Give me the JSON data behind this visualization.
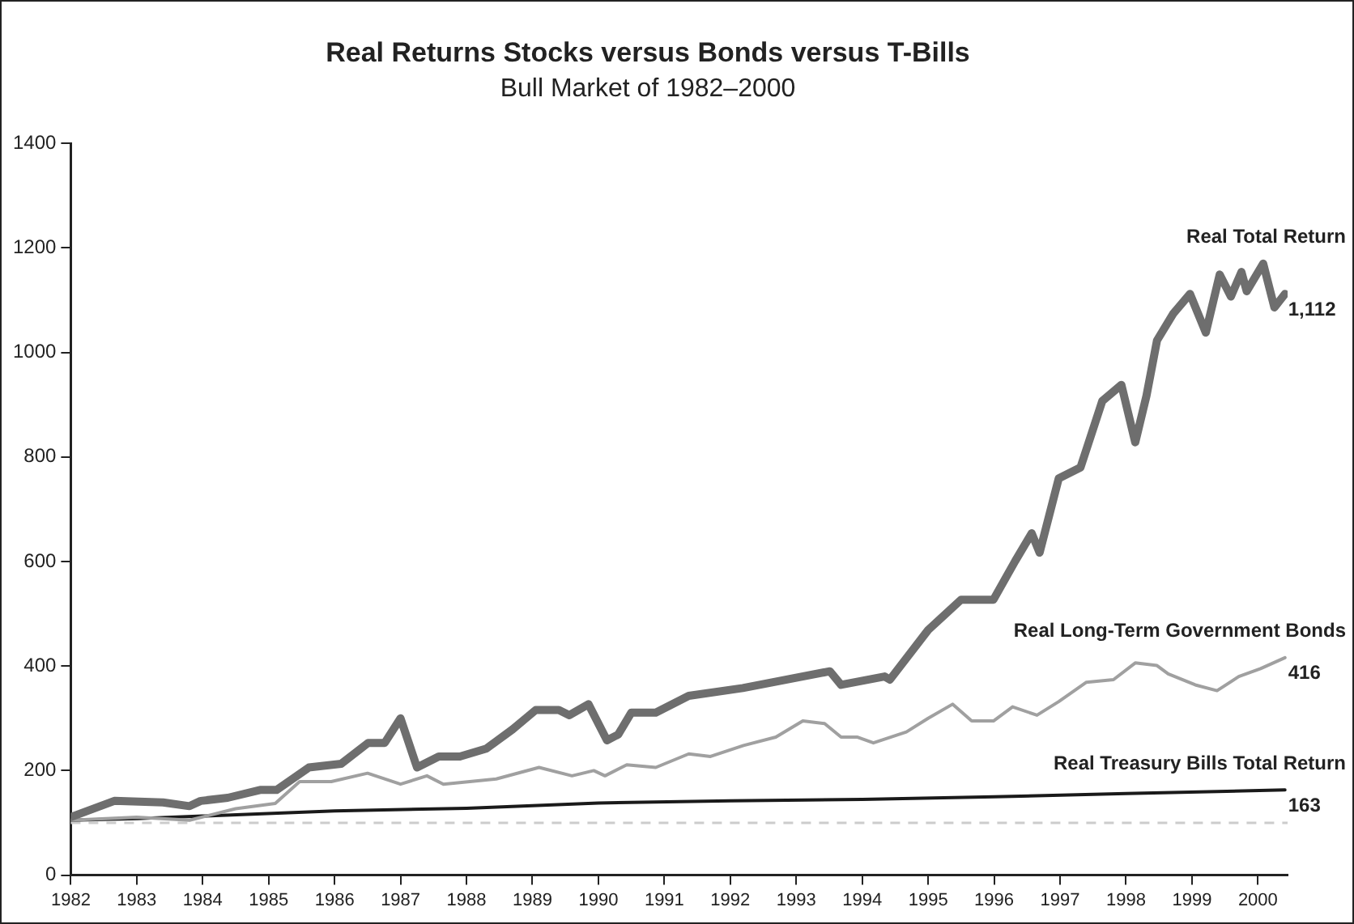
{
  "chart_data": {
    "type": "line",
    "title": "Real Returns Stocks versus Bonds versus T-Bills",
    "subtitle": "Bull Market of 1982–2000",
    "xlim": [
      1982,
      2000.45
    ],
    "xticks": [
      1982,
      1983,
      1984,
      1985,
      1986,
      1987,
      1988,
      1989,
      1990,
      1991,
      1992,
      1993,
      1994,
      1995,
      1996,
      1997,
      1998,
      1999,
      2000
    ],
    "ylim": [
      0,
      1400
    ],
    "yticks": [
      0,
      200,
      400,
      600,
      800,
      1000,
      1200,
      1400
    ],
    "grid": false,
    "legend": false,
    "series": [
      {
        "name": "Real Total Return",
        "color": "#6e6e6e",
        "x": [
          1982,
          1982.66,
          1983.4,
          1983.8,
          1983.97,
          1984.38,
          1984.87,
          1985.12,
          1985.61,
          1986.1,
          1986.51,
          1986.76,
          1987,
          1987.25,
          1987.58,
          1987.9,
          1988.3,
          1988.7,
          1989.05,
          1989.4,
          1989.56,
          1989.85,
          1990.13,
          1990.3,
          1990.5,
          1990.87,
          1991.37,
          1992.19,
          1993.51,
          1993.68,
          1994.34,
          1994.42,
          1995,
          1995.5,
          1995.99,
          1996.32,
          1996.57,
          1996.69,
          1996.98,
          1997.31,
          1997.64,
          1997.93,
          1998.14,
          1998.31,
          1998.47,
          1998.72,
          1998.97,
          1999.21,
          1999.42,
          1999.59,
          1999.75,
          1999.83,
          2000.08,
          2000.25,
          2000.41
        ],
        "values": [
          111,
          142,
          139,
          132,
          142,
          148,
          163,
          163,
          206,
          213,
          253,
          253,
          300,
          206,
          227,
          227,
          242,
          279,
          316,
          316,
          306,
          327,
          258,
          269,
          311,
          311,
          343,
          358,
          390,
          364,
          380,
          374,
          469,
          527,
          527,
          601,
          654,
          617,
          759,
          780,
          907,
          938,
          828,
          917,
          1023,
          1075,
          1112,
          1038,
          1149,
          1107,
          1154,
          1117,
          1170,
          1086,
          1112
        ],
        "value_labels": [
          null,
          null,
          null,
          null,
          null,
          null,
          null,
          null,
          null,
          null,
          null,
          null,
          null,
          null,
          null,
          null,
          null,
          null,
          null,
          null,
          null,
          null,
          null,
          null,
          null,
          null,
          null,
          null,
          null,
          null,
          null,
          null,
          null,
          null,
          null,
          null,
          null,
          null,
          null,
          null,
          null,
          null,
          null,
          null,
          null,
          null,
          null,
          null,
          null,
          null,
          null,
          null,
          null,
          null,
          "1,112"
        ]
      },
      {
        "name": "Real Long-Term Government Bonds",
        "color": "#a0a0a0",
        "x": [
          1982,
          1983,
          1983.8,
          1984.5,
          1985.1,
          1985.47,
          1985.95,
          1986.5,
          1987,
          1987.4,
          1987.65,
          1988.45,
          1989.1,
          1989.6,
          1989.93,
          1990.1,
          1990.43,
          1990.87,
          1991.37,
          1991.7,
          1992.2,
          1992.69,
          1993.1,
          1993.43,
          1993.68,
          1993.93,
          1994.17,
          1994.67,
          1995,
          1995.37,
          1995.66,
          1995.99,
          1996.28,
          1996.65,
          1996.98,
          1997.4,
          1997.81,
          1998.14,
          1998.47,
          1998.64,
          1999.05,
          1999.38,
          1999.71,
          2000.04,
          2000.41
        ],
        "values": [
          105,
          111,
          105,
          127,
          137,
          179,
          179,
          195,
          174,
          190,
          174,
          184,
          206,
          190,
          200,
          190,
          211,
          206,
          232,
          227,
          248,
          264,
          295,
          290,
          264,
          264,
          253,
          274,
          300,
          327,
          295,
          295,
          322,
          306,
          332,
          369,
          374,
          406,
          401,
          385,
          364,
          353,
          380,
          395,
          416
        ],
        "value_labels": [
          null,
          null,
          null,
          null,
          null,
          null,
          null,
          null,
          null,
          null,
          null,
          null,
          null,
          null,
          null,
          null,
          null,
          null,
          null,
          null,
          null,
          null,
          null,
          null,
          null,
          null,
          null,
          null,
          null,
          null,
          null,
          null,
          null,
          null,
          null,
          null,
          null,
          null,
          null,
          null,
          null,
          null,
          null,
          null,
          "416"
        ]
      },
      {
        "name": "Real Treasury Bills Total Return",
        "color": "#1a1a1a",
        "x": [
          1982,
          1983,
          1984,
          1986,
          1988,
          1990,
          1992,
          1994,
          1996,
          1998,
          2000.41
        ],
        "values": [
          105,
          108,
          113,
          123,
          128,
          138,
          142,
          145,
          150,
          156,
          163
        ],
        "value_labels": [
          null,
          null,
          null,
          null,
          null,
          null,
          null,
          null,
          null,
          null,
          "163"
        ]
      }
    ],
    "ref_lines": [
      {
        "axis": "y",
        "value": 100,
        "color": "#cccccc",
        "line_style": "dashed"
      }
    ]
  }
}
